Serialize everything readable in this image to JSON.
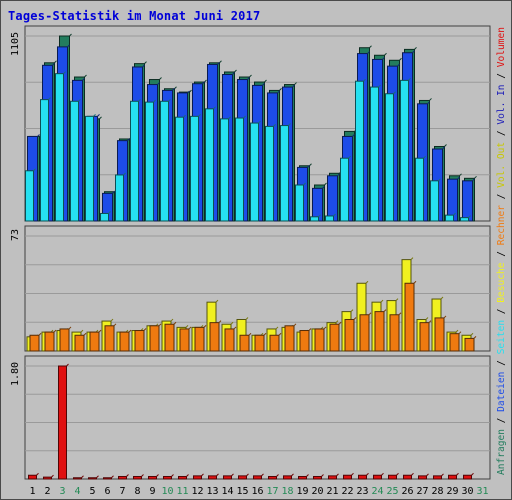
{
  "title": "Tages-Statistik im Monat Juni 2017",
  "colors": {
    "anfragen": "#237d5e",
    "dateien": "#1d4ce8",
    "seiten": "#26e0f0",
    "besuche": "#f0f020",
    "rechner": "#f07a10",
    "vol_out": "#c8c800",
    "vol_in": "#2020b8",
    "volumen": "#e01010",
    "weekend_day": "#238a55",
    "normal_day": "#000000"
  },
  "chart_data": [
    {
      "type": "bar",
      "name": "hits-panel",
      "ylim": [
        0,
        1105
      ],
      "max_label": "1105",
      "legend": [
        "Anfragen",
        "Dateien",
        "Seiten"
      ],
      "categories": [
        "1",
        "2",
        "3",
        "4",
        "5",
        "6",
        "7",
        "8",
        "9",
        "10",
        "11",
        "12",
        "13",
        "14",
        "15",
        "16",
        "17",
        "18",
        "19",
        "20",
        "21",
        "22",
        "23",
        "24",
        "25",
        "26",
        "27",
        "28",
        "29",
        "30"
      ],
      "series": [
        {
          "name": "Anfragen",
          "values": [
            505,
            945,
            1105,
            860,
            610,
            175,
            490,
            940,
            845,
            790,
            770,
            830,
            945,
            890,
            860,
            830,
            780,
            815,
            330,
            215,
            285,
            535,
            1035,
            990,
            960,
            1025,
            720,
            445,
            270,
            255
          ]
        },
        {
          "name": "Dateien",
          "values": [
            505,
            930,
            1040,
            840,
            625,
            165,
            480,
            920,
            815,
            780,
            765,
            820,
            935,
            875,
            845,
            810,
            765,
            800,
            320,
            195,
            270,
            505,
            1000,
            965,
            925,
            1005,
            700,
            430,
            250,
            240
          ]
        },
        {
          "name": "Seiten",
          "values": [
            300,
            725,
            880,
            715,
            625,
            45,
            275,
            715,
            710,
            715,
            620,
            625,
            670,
            610,
            615,
            585,
            565,
            570,
            215,
            25,
            30,
            375,
            835,
            800,
            760,
            840,
            375,
            240,
            35,
            20
          ]
        }
      ]
    },
    {
      "type": "bar",
      "name": "visits-panel",
      "ylim": [
        0,
        73
      ],
      "max_label": "73",
      "legend": [
        "Besuche",
        "Rechner"
      ],
      "categories": [
        "1",
        "2",
        "3",
        "4",
        "5",
        "6",
        "7",
        "8",
        "9",
        "10",
        "11",
        "12",
        "13",
        "14",
        "15",
        "16",
        "17",
        "18",
        "19",
        "20",
        "21",
        "22",
        "23",
        "24",
        "25",
        "26",
        "27",
        "28",
        "29",
        "30"
      ],
      "series": [
        {
          "name": "Besuche",
          "values": [
            9,
            12,
            13,
            12,
            12,
            19,
            12,
            13,
            16,
            19,
            15,
            15,
            31,
            17,
            20,
            10,
            14,
            15,
            12,
            14,
            18,
            25,
            43,
            31,
            32,
            58,
            20,
            33,
            12,
            10
          ]
        },
        {
          "name": "Rechner",
          "values": [
            10,
            12,
            14,
            10,
            12,
            16,
            12,
            13,
            16,
            17,
            14,
            15,
            18,
            14,
            10,
            10,
            10,
            16,
            13,
            14,
            17,
            20,
            23,
            25,
            23,
            43,
            18,
            21,
            11,
            8
          ]
        }
      ]
    },
    {
      "type": "bar",
      "name": "volume-panel",
      "ylim": [
        0,
        1.8
      ],
      "max_label": "1.80",
      "legend": [
        "Volumen",
        "Vol. In",
        "Vol. Out"
      ],
      "categories": [
        "1",
        "2",
        "3",
        "4",
        "5",
        "6",
        "7",
        "8",
        "9",
        "10",
        "11",
        "12",
        "13",
        "14",
        "15",
        "16",
        "17",
        "18",
        "19",
        "20",
        "21",
        "22",
        "23",
        "24",
        "25",
        "26",
        "27",
        "28",
        "29",
        "30"
      ],
      "series": [
        {
          "name": "Volumen",
          "values": [
            0.06,
            0.03,
            1.8,
            0.02,
            0.02,
            0.02,
            0.04,
            0.04,
            0.04,
            0.04,
            0.04,
            0.05,
            0.05,
            0.05,
            0.05,
            0.05,
            0.04,
            0.05,
            0.04,
            0.04,
            0.05,
            0.06,
            0.06,
            0.06,
            0.06,
            0.06,
            0.05,
            0.05,
            0.06,
            0.06
          ]
        }
      ]
    }
  ],
  "xaxis": {
    "labels": [
      "1",
      "2",
      "3",
      "4",
      "5",
      "6",
      "7",
      "8",
      "9",
      "10",
      "11",
      "12",
      "13",
      "14",
      "15",
      "16",
      "17",
      "18",
      "19",
      "20",
      "21",
      "22",
      "23",
      "24",
      "25",
      "26",
      "27",
      "28",
      "29",
      "30",
      "31"
    ],
    "weekend": [
      "3",
      "4",
      "10",
      "11",
      "17",
      "18",
      "24",
      "25",
      "31"
    ]
  }
}
